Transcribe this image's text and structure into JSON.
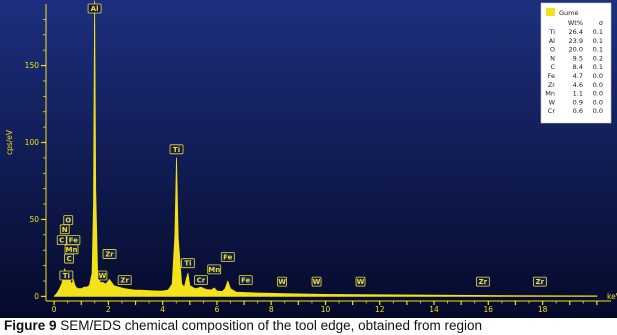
{
  "caption": {
    "label": "Figure 9",
    "text": " SEM/EDS chemical composition of the tool edge, obtained from region"
  },
  "colors": {
    "background_top": "#1d2f7e",
    "background_bottom": "#050a2a",
    "spectrum": "#f2e21a",
    "legend_bg": "#ffffff"
  },
  "chart_data": {
    "type": "line",
    "title": "",
    "xlabel": "keV",
    "ylabel": "cps/eV",
    "xlim": [
      -0.3,
      20.3
    ],
    "ylim": [
      -3,
      190
    ],
    "x_ticks": [
      0,
      2,
      4,
      6,
      8,
      10,
      12,
      14,
      16,
      18
    ],
    "x_tick_labels": [
      "0",
      "2",
      "4",
      "6",
      "8",
      "10",
      "12",
      "14",
      "16",
      "18"
    ],
    "y_ticks": [
      0,
      50,
      100,
      150
    ],
    "y_tick_labels": [
      "0",
      "50",
      "100",
      "150"
    ],
    "grid": false,
    "series": [
      {
        "name": "Gume",
        "x": [
          0,
          0.1,
          0.2,
          0.28,
          0.35,
          0.39,
          0.45,
          0.52,
          0.6,
          0.64,
          0.68,
          0.71,
          0.75,
          0.8,
          0.9,
          1.0,
          1.1,
          1.2,
          1.3,
          1.4,
          1.45,
          1.49,
          1.53,
          1.6,
          1.7,
          1.8,
          1.9,
          2.04,
          2.2,
          2.4,
          2.6,
          2.8,
          3.0,
          3.2,
          3.4,
          3.6,
          3.8,
          4.0,
          4.2,
          4.35,
          4.45,
          4.51,
          4.57,
          4.7,
          4.8,
          4.88,
          4.93,
          5.0,
          5.2,
          5.41,
          5.6,
          5.8,
          5.9,
          6.0,
          6.2,
          6.3,
          6.4,
          6.5,
          6.7,
          7.0,
          7.5,
          8.0,
          8.5,
          9.0,
          10.0,
          12.0,
          14.0,
          16.0,
          18.0,
          20.0
        ],
        "y": [
          0,
          2,
          5,
          8,
          12,
          18,
          12,
          16,
          10,
          8,
          9,
          11,
          8,
          6,
          5,
          5,
          6,
          6,
          7,
          15,
          60,
          205,
          70,
          15,
          9,
          9,
          8,
          11,
          7,
          6,
          5,
          4.5,
          4,
          4,
          3.8,
          3.6,
          3.5,
          3.5,
          4,
          8,
          40,
          90,
          38,
          8,
          6,
          12,
          15,
          7,
          5,
          6,
          4.5,
          4.2,
          5.5,
          3.5,
          3.2,
          5,
          10,
          5,
          2.8,
          2.5,
          2.2,
          2,
          1.8,
          1.6,
          1.3,
          1,
          0.8,
          0.6,
          0.4,
          0.3
        ]
      }
    ],
    "peak_labels": [
      {
        "text": "Al",
        "x": 1.49,
        "y": 203
      },
      {
        "text": "Ti",
        "x": 4.51,
        "y": 92
      },
      {
        "text": "O",
        "x": 0.52,
        "y": 46
      },
      {
        "text": "N",
        "x": 0.39,
        "y": 40
      },
      {
        "text": "C",
        "x": 0.28,
        "y": 33
      },
      {
        "text": "Fe",
        "x": 0.71,
        "y": 33
      },
      {
        "text": "Mn",
        "x": 0.64,
        "y": 27
      },
      {
        "text": "C",
        "x": 0.55,
        "y": 21
      },
      {
        "text": "Ti",
        "x": 0.45,
        "y": 10
      },
      {
        "text": "Zr",
        "x": 2.04,
        "y": 24
      },
      {
        "text": "W",
        "x": 1.78,
        "y": 10
      },
      {
        "text": "Zr",
        "x": 2.6,
        "y": 7
      },
      {
        "text": "Ti",
        "x": 4.93,
        "y": 18
      },
      {
        "text": "Fe",
        "x": 6.4,
        "y": 22
      },
      {
        "text": "Mn",
        "x": 5.9,
        "y": 14
      },
      {
        "text": "Cr",
        "x": 5.41,
        "y": 7
      },
      {
        "text": "Fe",
        "x": 7.06,
        "y": 7
      },
      {
        "text": "W",
        "x": 8.4,
        "y": 6
      },
      {
        "text": "W",
        "x": 9.67,
        "y": 6
      },
      {
        "text": "W",
        "x": 11.29,
        "y": 6
      },
      {
        "text": "Zr",
        "x": 15.8,
        "y": 6
      },
      {
        "text": "Zr",
        "x": 17.9,
        "y": 6
      }
    ],
    "legend": {
      "placement": "top-right",
      "series_name": "Gume",
      "header_w": "Wt%",
      "header_s": "σ",
      "rows": [
        {
          "el": "Ti",
          "wt": "26.4",
          "s": "0.1"
        },
        {
          "el": "Al",
          "wt": "23.9",
          "s": "0.1"
        },
        {
          "el": "O",
          "wt": "20.0",
          "s": "0.1"
        },
        {
          "el": "N",
          "wt": "9.5",
          "s": "0.2"
        },
        {
          "el": "C",
          "wt": "8.4",
          "s": "0.1"
        },
        {
          "el": "Fe",
          "wt": "4.7",
          "s": "0.0"
        },
        {
          "el": "Zr",
          "wt": "4.6",
          "s": "0.0"
        },
        {
          "el": "Mn",
          "wt": "1.1",
          "s": "0.0"
        },
        {
          "el": "W",
          "wt": "0.9",
          "s": "0.0"
        },
        {
          "el": "Cr",
          "wt": "0.6",
          "s": "0.0"
        }
      ]
    }
  }
}
